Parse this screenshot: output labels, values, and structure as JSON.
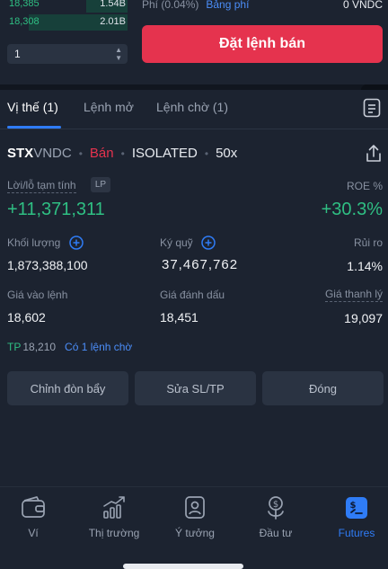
{
  "orderbook": {
    "rows": [
      {
        "price": "18,385",
        "qty": "1.54B",
        "depth": 0.34
      },
      {
        "price": "18,308",
        "qty": "2.01B",
        "depth": 0.82
      }
    ],
    "depth_select_value": "1"
  },
  "order_form": {
    "fee_label": "Phí (0.04%)",
    "fee_link": "Bảng phí",
    "fee_value": "0 VNDC",
    "sell_button": "Đặt lệnh bán"
  },
  "tabs": [
    {
      "label": "Vị thế (1)",
      "active": true
    },
    {
      "label": "Lệnh mở",
      "active": false
    },
    {
      "label": "Lệnh chờ (1)",
      "active": false
    }
  ],
  "position": {
    "symbol_base": "STX",
    "symbol_quote": "VNDC",
    "side": "Bán",
    "margin_mode": "ISOLATED",
    "leverage": "50x",
    "pnl_label": "Lời/lỗ tạm tính",
    "pnl_badge": "LP",
    "pnl_value": "+11,371,311",
    "roe_label": "ROE %",
    "roe_value": "+30.3%",
    "volume_label": "Khối lượng",
    "volume_value": "1,873,388,100",
    "margin_label": "Ký quỹ",
    "margin_value": "37,467,762",
    "risk_label": "Rủi ro",
    "risk_value": "1.14%",
    "entry_label": "Giá vào lệnh",
    "entry_value": "18,602",
    "mark_label": "Giá đánh dấu",
    "mark_value": "18,451",
    "liq_label": "Giá thanh lý",
    "liq_value": "19,097",
    "tp_label": "TP",
    "tp_value": "18,210",
    "pending_link": "Có 1 lệnh chờ"
  },
  "actions": {
    "leverage_button": "Chỉnh đòn bẩy",
    "sltp_button": "Sửa SL/TP",
    "close_button": "Đóng"
  },
  "bottom_nav": [
    {
      "label": "Ví",
      "icon": "wallet-icon",
      "active": false
    },
    {
      "label": "Thị trường",
      "icon": "market-chart-icon",
      "active": false
    },
    {
      "label": "Ý tưởng",
      "icon": "ideas-icon",
      "active": false
    },
    {
      "label": "Đầu tư",
      "icon": "invest-icon",
      "active": false
    },
    {
      "label": "Futures",
      "icon": "futures-icon",
      "active": true
    }
  ],
  "colors": {
    "background": "#1c2330",
    "green": "#2fbf83",
    "red": "#e5334e",
    "accent_blue": "#2f7cf6",
    "link_blue": "#4b8df8"
  }
}
